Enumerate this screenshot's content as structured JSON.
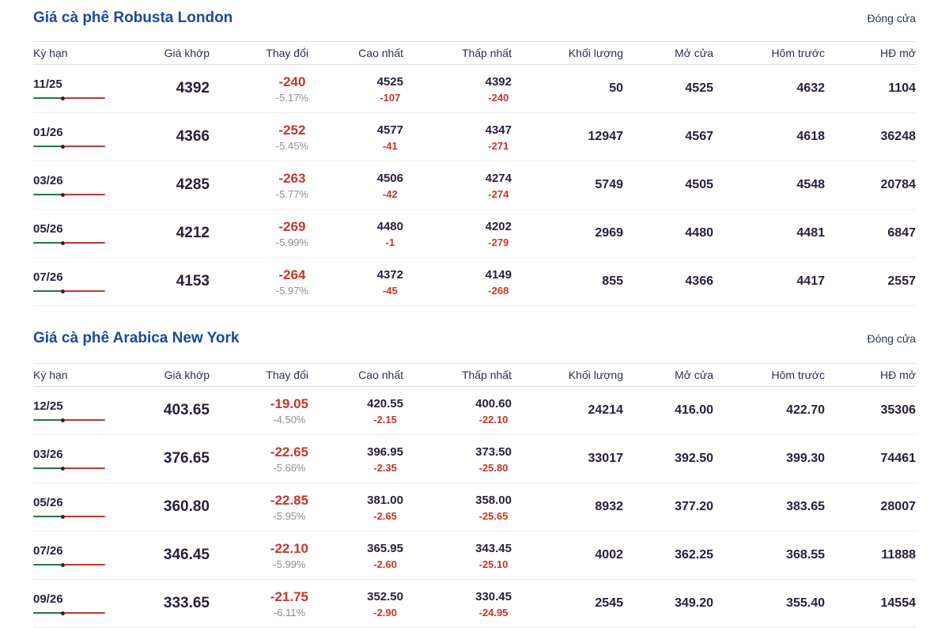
{
  "colors": {
    "title_blue": "#1b4a9b",
    "header_text": "#2b3152",
    "value_dark": "#2a1e3c",
    "negative_red": "#c6362c",
    "percent_gray": "#8e8e96",
    "bar_green": "#1f7a3d",
    "bar_red": "#bf3a30",
    "border": "#ececec"
  },
  "tables": [
    {
      "title": "Giá cà phê Robusta London",
      "close_label": "Đóng cửa",
      "columns": [
        "Kỳ hạn",
        "Giá khớp",
        "Thay đổi",
        "Cao nhất",
        "Thấp nhất",
        "Khối lượng",
        "Mở cửa",
        "Hôm trước",
        "HĐ mở"
      ],
      "rows": [
        {
          "term": "11/25",
          "price": "4392",
          "change": "-240",
          "change_pct": "-5.17%",
          "high": "4525",
          "high_diff": "-107",
          "low": "4392",
          "low_diff": "-240",
          "volume": "50",
          "open": "4525",
          "prev": "4632",
          "open_interest": "1104"
        },
        {
          "term": "01/26",
          "price": "4366",
          "change": "-252",
          "change_pct": "-5.45%",
          "high": "4577",
          "high_diff": "-41",
          "low": "4347",
          "low_diff": "-271",
          "volume": "12947",
          "open": "4567",
          "prev": "4618",
          "open_interest": "36248"
        },
        {
          "term": "03/26",
          "price": "4285",
          "change": "-263",
          "change_pct": "-5.77%",
          "high": "4506",
          "high_diff": "-42",
          "low": "4274",
          "low_diff": "-274",
          "volume": "5749",
          "open": "4505",
          "prev": "4548",
          "open_interest": "20784"
        },
        {
          "term": "05/26",
          "price": "4212",
          "change": "-269",
          "change_pct": "-5.99%",
          "high": "4480",
          "high_diff": "-1",
          "low": "4202",
          "low_diff": "-279",
          "volume": "2969",
          "open": "4480",
          "prev": "4481",
          "open_interest": "6847"
        },
        {
          "term": "07/26",
          "price": "4153",
          "change": "-264",
          "change_pct": "-5.97%",
          "high": "4372",
          "high_diff": "-45",
          "low": "4149",
          "low_diff": "-268",
          "volume": "855",
          "open": "4366",
          "prev": "4417",
          "open_interest": "2557"
        }
      ]
    },
    {
      "title": "Giá cà phê Arabica New York",
      "close_label": "Đóng cửa",
      "columns": [
        "Kỳ hạn",
        "Giá khớp",
        "Thay đổi",
        "Cao nhất",
        "Thấp nhất",
        "Khối lượng",
        "Mở cửa",
        "Hôm trước",
        "HĐ mở"
      ],
      "rows": [
        {
          "term": "12/25",
          "price": "403.65",
          "change": "-19.05",
          "change_pct": "-4.50%",
          "high": "420.55",
          "high_diff": "-2.15",
          "low": "400.60",
          "low_diff": "-22.10",
          "volume": "24214",
          "open": "416.00",
          "prev": "422.70",
          "open_interest": "35306"
        },
        {
          "term": "03/26",
          "price": "376.65",
          "change": "-22.65",
          "change_pct": "-5.66%",
          "high": "396.95",
          "high_diff": "-2.35",
          "low": "373.50",
          "low_diff": "-25.80",
          "volume": "33017",
          "open": "392.50",
          "prev": "399.30",
          "open_interest": "74461"
        },
        {
          "term": "05/26",
          "price": "360.80",
          "change": "-22.85",
          "change_pct": "-5.95%",
          "high": "381.00",
          "high_diff": "-2.65",
          "low": "358.00",
          "low_diff": "-25.65",
          "volume": "8932",
          "open": "377.20",
          "prev": "383.65",
          "open_interest": "28007"
        },
        {
          "term": "07/26",
          "price": "346.45",
          "change": "-22.10",
          "change_pct": "-5.99%",
          "high": "365.95",
          "high_diff": "-2.60",
          "low": "343.45",
          "low_diff": "-25.10",
          "volume": "4002",
          "open": "362.25",
          "prev": "368.55",
          "open_interest": "11888"
        },
        {
          "term": "09/26",
          "price": "333.65",
          "change": "-21.75",
          "change_pct": "-6.11%",
          "high": "352.50",
          "high_diff": "-2.90",
          "low": "330.45",
          "low_diff": "-24.95",
          "volume": "2545",
          "open": "349.20",
          "prev": "355.40",
          "open_interest": "14554"
        }
      ]
    }
  ]
}
